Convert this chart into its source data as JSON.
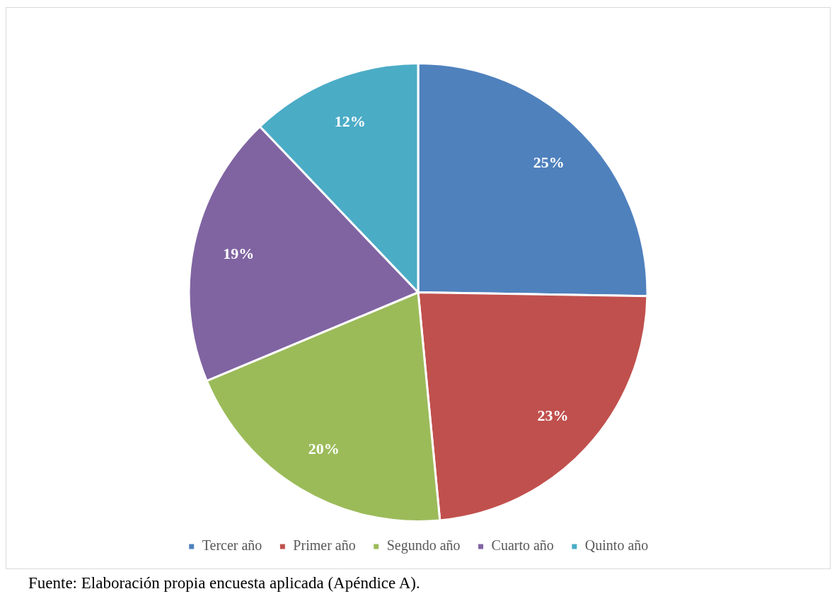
{
  "chart_data": {
    "type": "pie",
    "categories": [
      "Tercer año",
      "Primer año",
      "Segundo año",
      "Cuarto año",
      "Quinto año"
    ],
    "values": [
      25,
      23,
      20,
      19,
      12
    ],
    "value_labels": [
      "25%",
      "23%",
      "20%",
      "19%",
      "12%"
    ],
    "colors": [
      "#4f81bd",
      "#c0504d",
      "#9bbb59",
      "#8064a2",
      "#4bacc6"
    ],
    "legend": "bottom",
    "annotations": [
      "Fuente: Elaboración propia encuesta aplicada (Apéndice A)."
    ]
  }
}
